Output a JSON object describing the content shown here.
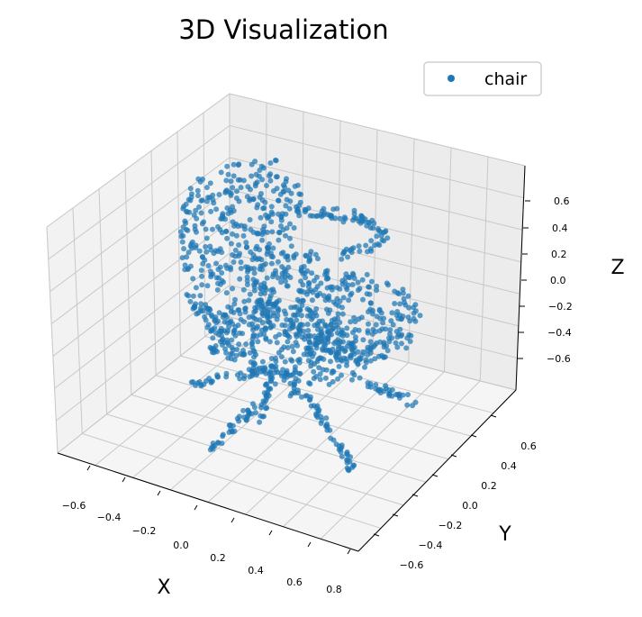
{
  "chart_data": {
    "type": "scatter",
    "title": "3D Visualization",
    "xlabel": "X",
    "ylabel": "Y",
    "zlabel": "Z",
    "legend": {
      "entries": [
        "chair"
      ],
      "position": "top-right"
    },
    "series": [
      {
        "name": "chair",
        "color": "#1f77b4",
        "shape_note": "dense point cloud of a chair: backrest, seat, and four-legged swivel base",
        "points": [
          [
            -0.45,
            0.55,
            0.55
          ],
          [
            -0.35,
            0.6,
            0.6
          ],
          [
            -0.2,
            0.55,
            0.65
          ],
          [
            0.0,
            0.55,
            0.6
          ],
          [
            -0.5,
            0.5,
            0.3
          ],
          [
            -0.4,
            0.55,
            0.2
          ],
          [
            -0.3,
            0.55,
            0.1
          ],
          [
            -0.15,
            0.5,
            0.3
          ],
          [
            0.0,
            0.5,
            0.35
          ],
          [
            0.15,
            0.5,
            0.4
          ],
          [
            0.3,
            0.5,
            0.45
          ],
          [
            0.4,
            0.45,
            0.4
          ],
          [
            -0.45,
            0.4,
            0.0
          ],
          [
            -0.3,
            0.3,
            -0.05
          ],
          [
            -0.1,
            0.2,
            -0.05
          ],
          [
            0.1,
            0.1,
            0.0
          ],
          [
            0.3,
            0.0,
            0.05
          ],
          [
            0.5,
            -0.05,
            0.1
          ],
          [
            0.55,
            -0.15,
            0.2
          ],
          [
            0.5,
            -0.2,
            0.3
          ],
          [
            -0.4,
            0.2,
            -0.2
          ],
          [
            -0.2,
            0.0,
            -0.25
          ],
          [
            0.0,
            -0.1,
            -0.25
          ],
          [
            0.2,
            -0.25,
            -0.2
          ],
          [
            0.0,
            0.0,
            -0.45
          ],
          [
            -0.1,
            0.05,
            -0.5
          ],
          [
            0.1,
            -0.05,
            -0.5
          ],
          [
            -0.55,
            0.1,
            -0.6
          ],
          [
            -0.3,
            0.2,
            -0.65
          ],
          [
            0.2,
            -0.35,
            -0.65
          ],
          [
            0.45,
            -0.2,
            -0.6
          ]
        ]
      }
    ],
    "x_ticks": [
      "−0.6",
      "−0.4",
      "−0.2",
      "0.0",
      "0.2",
      "0.4",
      "0.6",
      "0.8"
    ],
    "y_ticks": [
      "−0.6",
      "−0.4",
      "−0.2",
      "0.0",
      "0.2",
      "0.4",
      "0.6"
    ],
    "z_ticks": [
      "−0.6",
      "−0.4",
      "−0.2",
      "0.0",
      "0.2",
      "0.4",
      "0.6"
    ],
    "xlim": [
      -0.7,
      0.85
    ],
    "ylim": [
      -0.7,
      0.7
    ],
    "zlim": [
      -0.7,
      0.7
    ],
    "grid": true,
    "pane_color": "#f2f2f2",
    "grid_color": "#c8c8c8"
  }
}
